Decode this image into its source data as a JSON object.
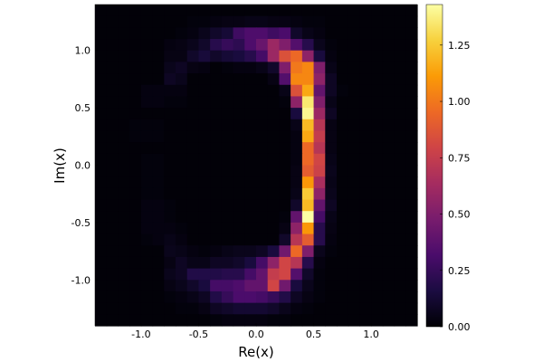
{
  "chart_data": {
    "type": "heatmap",
    "title": "",
    "xlabel": "Re(x)",
    "ylabel": "Im(x)",
    "xlim": [
      -1.4,
      1.4
    ],
    "ylim": [
      -1.4,
      1.4
    ],
    "grid": false,
    "x_ticks": [
      -1.0,
      -0.5,
      0.0,
      0.5,
      1.0
    ],
    "x_tick_labels": [
      "-1.0",
      "-0.5",
      "0.0",
      "0.5",
      "1.0"
    ],
    "y_ticks": [
      -1.0,
      -0.5,
      0.0,
      0.5,
      1.0
    ],
    "y_tick_labels": [
      "-1.0",
      "-0.5",
      "0.0",
      "0.5",
      "1.0"
    ],
    "bin_size": 0.1,
    "x_edges_start": -1.4,
    "y_edges_start": -1.4,
    "colorbar": {
      "colormap": "inferno",
      "range": [
        0.0,
        1.43
      ],
      "ticks": [
        0.0,
        0.25,
        0.5,
        0.75,
        1.0,
        1.25
      ],
      "tick_labels": [
        "0.00",
        "0.25",
        "0.50",
        "0.75",
        "1.00",
        "1.25"
      ],
      "colors": [
        "#000004",
        "#1b0c41",
        "#4a0c6b",
        "#781c6d",
        "#a52c60",
        "#cf4446",
        "#ed6925",
        "#fb9b06",
        "#f7d13d",
        "#fcffa4"
      ]
    },
    "values_note_rows_top_to_bottom": "",
    "values": [
      [
        0.01,
        0.01,
        0.01,
        0.01,
        0.01,
        0.01,
        0.01,
        0.01,
        0.01,
        0.01,
        0.01,
        0.01,
        0.01,
        0.01,
        0.01,
        0.01,
        0.01,
        0.01,
        0.01,
        0.01,
        0.01,
        0.01,
        0.01,
        0.01,
        0.01,
        0.01,
        0.01,
        0.01
      ],
      [
        0.01,
        0.01,
        0.01,
        0.01,
        0.01,
        0.01,
        0.01,
        0.01,
        0.02,
        0.02,
        0.03,
        0.04,
        0.04,
        0.05,
        0.05,
        0.04,
        0.04,
        0.03,
        0.02,
        0.02,
        0.01,
        0.01,
        0.01,
        0.01,
        0.01,
        0.01,
        0.01,
        0.01
      ],
      [
        0.01,
        0.01,
        0.01,
        0.01,
        0.01,
        0.01,
        0.01,
        0.02,
        0.03,
        0.06,
        0.1,
        0.13,
        0.28,
        0.33,
        0.33,
        0.28,
        0.32,
        0.1,
        0.05,
        0.03,
        0.01,
        0.01,
        0.01,
        0.01,
        0.01,
        0.01,
        0.01,
        0.01
      ],
      [
        0.01,
        0.01,
        0.01,
        0.01,
        0.01,
        0.01,
        0.03,
        0.04,
        0.06,
        0.1,
        0.2,
        0.25,
        0.22,
        0.33,
        0.42,
        0.6,
        0.5,
        0.35,
        0.2,
        0.06,
        0.02,
        0.01,
        0.01,
        0.01,
        0.01,
        0.01,
        0.01,
        0.01
      ],
      [
        0.01,
        0.01,
        0.01,
        0.01,
        0.01,
        0.01,
        0.04,
        0.04,
        0.1,
        0.14,
        0.1,
        0.13,
        0.15,
        0.2,
        0.3,
        0.6,
        0.85,
        0.95,
        0.55,
        0.15,
        0.03,
        0.01,
        0.01,
        0.01,
        0.01,
        0.01,
        0.01,
        0.01
      ],
      [
        0.01,
        0.01,
        0.01,
        0.01,
        0.01,
        0.01,
        0.06,
        0.08,
        0.04,
        0.03,
        0.01,
        0.02,
        0.03,
        0.03,
        0.05,
        0.1,
        0.5,
        1.0,
        1.05,
        0.5,
        0.05,
        0.01,
        0.01,
        0.01,
        0.01,
        0.01,
        0.01,
        0.01
      ],
      [
        0.01,
        0.01,
        0.01,
        0.01,
        0.01,
        0.01,
        0.08,
        0.06,
        0.01,
        0.01,
        0.01,
        0.01,
        0.01,
        0.01,
        0.01,
        0.04,
        0.35,
        1.05,
        1.05,
        0.55,
        0.08,
        0.01,
        0.01,
        0.01,
        0.01,
        0.01,
        0.01,
        0.01
      ],
      [
        0.01,
        0.01,
        0.01,
        0.01,
        0.03,
        0.03,
        0.03,
        0.03,
        0.01,
        0.01,
        0.01,
        0.01,
        0.01,
        0.01,
        0.01,
        0.01,
        0.05,
        0.85,
        1.15,
        0.4,
        0.08,
        0.02,
        0.01,
        0.01,
        0.01,
        0.01,
        0.01,
        0.01
      ],
      [
        0.01,
        0.01,
        0.01,
        0.01,
        0.03,
        0.03,
        0.02,
        0.02,
        0.01,
        0.01,
        0.01,
        0.01,
        0.01,
        0.01,
        0.01,
        0.01,
        0.02,
        0.55,
        1.35,
        0.5,
        0.05,
        0.01,
        0.01,
        0.01,
        0.01,
        0.01,
        0.01,
        0.01
      ],
      [
        0.01,
        0.01,
        0.01,
        0.01,
        0.01,
        0.01,
        0.01,
        0.01,
        0.01,
        0.01,
        0.01,
        0.01,
        0.01,
        0.01,
        0.01,
        0.01,
        0.01,
        0.15,
        1.4,
        0.6,
        0.08,
        0.01,
        0.01,
        0.01,
        0.01,
        0.01,
        0.01,
        0.01
      ],
      [
        0.01,
        0.01,
        0.01,
        0.02,
        0.02,
        0.02,
        0.01,
        0.01,
        0.01,
        0.01,
        0.01,
        0.01,
        0.01,
        0.01,
        0.01,
        0.01,
        0.01,
        0.05,
        1.2,
        0.7,
        0.04,
        0.01,
        0.01,
        0.01,
        0.01,
        0.01,
        0.01,
        0.01
      ],
      [
        0.01,
        0.01,
        0.01,
        0.02,
        0.02,
        0.02,
        0.01,
        0.01,
        0.01,
        0.01,
        0.01,
        0.01,
        0.01,
        0.01,
        0.01,
        0.01,
        0.01,
        0.03,
        1.15,
        0.75,
        0.04,
        0.01,
        0.01,
        0.01,
        0.01,
        0.01,
        0.01,
        0.01
      ],
      [
        0.01,
        0.01,
        0.01,
        0.01,
        0.01,
        0.01,
        0.01,
        0.01,
        0.01,
        0.01,
        0.01,
        0.01,
        0.01,
        0.01,
        0.01,
        0.01,
        0.01,
        0.03,
        0.95,
        0.7,
        0.04,
        0.01,
        0.01,
        0.01,
        0.01,
        0.01,
        0.01,
        0.01
      ],
      [
        0.01,
        0.01,
        0.01,
        0.01,
        0.02,
        0.02,
        0.01,
        0.01,
        0.01,
        0.01,
        0.01,
        0.01,
        0.01,
        0.01,
        0.01,
        0.01,
        0.01,
        0.03,
        0.95,
        0.8,
        0.05,
        0.01,
        0.01,
        0.01,
        0.01,
        0.01,
        0.01,
        0.01
      ],
      [
        0.01,
        0.01,
        0.01,
        0.01,
        0.02,
        0.02,
        0.01,
        0.01,
        0.01,
        0.01,
        0.01,
        0.01,
        0.01,
        0.01,
        0.01,
        0.01,
        0.01,
        0.04,
        0.9,
        0.78,
        0.06,
        0.01,
        0.01,
        0.01,
        0.01,
        0.01,
        0.01,
        0.01
      ],
      [
        0.01,
        0.01,
        0.01,
        0.01,
        0.02,
        0.02,
        0.01,
        0.01,
        0.01,
        0.01,
        0.01,
        0.01,
        0.01,
        0.01,
        0.01,
        0.01,
        0.01,
        0.04,
        1.1,
        0.65,
        0.05,
        0.01,
        0.01,
        0.01,
        0.01,
        0.01,
        0.01,
        0.01
      ],
      [
        0.01,
        0.01,
        0.01,
        0.01,
        0.02,
        0.02,
        0.01,
        0.01,
        0.01,
        0.01,
        0.01,
        0.01,
        0.01,
        0.01,
        0.01,
        0.01,
        0.01,
        0.05,
        1.25,
        0.55,
        0.06,
        0.01,
        0.01,
        0.01,
        0.01,
        0.01,
        0.01,
        0.01
      ],
      [
        0.01,
        0.01,
        0.01,
        0.01,
        0.03,
        0.03,
        0.02,
        0.01,
        0.01,
        0.01,
        0.01,
        0.01,
        0.01,
        0.01,
        0.01,
        0.01,
        0.01,
        0.1,
        1.2,
        0.4,
        0.08,
        0.01,
        0.01,
        0.01,
        0.01,
        0.01,
        0.01,
        0.01
      ],
      [
        0.01,
        0.01,
        0.01,
        0.01,
        0.03,
        0.03,
        0.02,
        0.01,
        0.01,
        0.01,
        0.01,
        0.01,
        0.01,
        0.01,
        0.01,
        0.01,
        0.02,
        0.4,
        1.43,
        0.3,
        0.05,
        0.01,
        0.01,
        0.01,
        0.01,
        0.01,
        0.01,
        0.01
      ],
      [
        0.01,
        0.01,
        0.01,
        0.01,
        0.03,
        0.03,
        0.03,
        0.02,
        0.01,
        0.01,
        0.01,
        0.01,
        0.01,
        0.01,
        0.01,
        0.01,
        0.04,
        0.55,
        1.1,
        0.2,
        0.04,
        0.01,
        0.01,
        0.01,
        0.01,
        0.01,
        0.01,
        0.01
      ],
      [
        0.01,
        0.01,
        0.01,
        0.01,
        0.02,
        0.03,
        0.05,
        0.03,
        0.01,
        0.01,
        0.01,
        0.01,
        0.01,
        0.01,
        0.01,
        0.01,
        0.1,
        0.7,
        0.9,
        0.2,
        0.03,
        0.01,
        0.01,
        0.01,
        0.01,
        0.01,
        0.01,
        0.01
      ],
      [
        0.01,
        0.01,
        0.01,
        0.01,
        0.01,
        0.01,
        0.06,
        0.05,
        0.03,
        0.02,
        0.03,
        0.05,
        0.06,
        0.06,
        0.08,
        0.15,
        0.45,
        0.95,
        0.5,
        0.06,
        0.02,
        0.01,
        0.01,
        0.01,
        0.01,
        0.01,
        0.01,
        0.01
      ],
      [
        0.01,
        0.01,
        0.01,
        0.01,
        0.01,
        0.01,
        0.04,
        0.08,
        0.05,
        0.05,
        0.08,
        0.08,
        0.1,
        0.15,
        0.3,
        0.55,
        0.8,
        0.7,
        0.2,
        0.03,
        0.01,
        0.01,
        0.01,
        0.01,
        0.01,
        0.01,
        0.01,
        0.01
      ],
      [
        0.01,
        0.01,
        0.01,
        0.01,
        0.01,
        0.01,
        0.06,
        0.08,
        0.18,
        0.18,
        0.18,
        0.2,
        0.2,
        0.3,
        0.4,
        0.75,
        0.8,
        0.35,
        0.1,
        0.02,
        0.01,
        0.01,
        0.01,
        0.01,
        0.01,
        0.01,
        0.01,
        0.01
      ],
      [
        0.01,
        0.01,
        0.01,
        0.01,
        0.01,
        0.01,
        0.04,
        0.06,
        0.1,
        0.15,
        0.3,
        0.3,
        0.33,
        0.4,
        0.4,
        0.8,
        0.45,
        0.15,
        0.06,
        0.02,
        0.01,
        0.01,
        0.01,
        0.01,
        0.01,
        0.01,
        0.01,
        0.01
      ],
      [
        0.01,
        0.01,
        0.01,
        0.01,
        0.01,
        0.01,
        0.02,
        0.03,
        0.05,
        0.08,
        0.18,
        0.25,
        0.32,
        0.32,
        0.3,
        0.25,
        0.18,
        0.08,
        0.04,
        0.02,
        0.01,
        0.01,
        0.01,
        0.01,
        0.01,
        0.01,
        0.01,
        0.01
      ],
      [
        0.01,
        0.01,
        0.01,
        0.01,
        0.01,
        0.01,
        0.01,
        0.02,
        0.02,
        0.04,
        0.08,
        0.1,
        0.12,
        0.12,
        0.12,
        0.1,
        0.06,
        0.03,
        0.02,
        0.01,
        0.01,
        0.01,
        0.01,
        0.01,
        0.01,
        0.01,
        0.01,
        0.01
      ],
      [
        0.01,
        0.01,
        0.01,
        0.01,
        0.01,
        0.01,
        0.01,
        0.01,
        0.01,
        0.01,
        0.02,
        0.03,
        0.03,
        0.03,
        0.03,
        0.02,
        0.02,
        0.01,
        0.01,
        0.01,
        0.01,
        0.01,
        0.01,
        0.01,
        0.01,
        0.01,
        0.01,
        0.01
      ]
    ]
  }
}
